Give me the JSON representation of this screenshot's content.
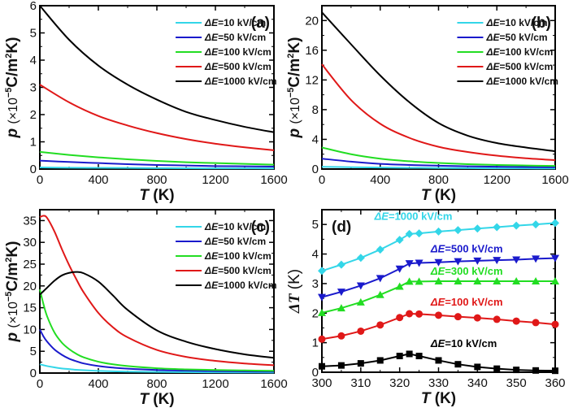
{
  "chart_data": [
    {
      "panel": "(a)",
      "type": "line",
      "xlabel": "T (K)",
      "ylabel": "p (×10⁻⁵C/m²K)",
      "xlim": [
        0,
        1600
      ],
      "ylim": [
        0,
        6
      ],
      "xticks": [
        0,
        400,
        800,
        1200,
        1600
      ],
      "yticks": [
        0,
        1,
        2,
        3,
        4,
        5,
        6
      ],
      "legend_position": "top-right",
      "x": [
        0,
        200,
        400,
        600,
        800,
        1000,
        1200,
        1400,
        1600
      ],
      "series": [
        {
          "name": "ΔE=10 kV/cm",
          "color": "#33d6e8",
          "values": [
            0.06,
            0.05,
            0.045,
            0.04,
            0.035,
            0.03,
            0.027,
            0.025,
            0.023
          ]
        },
        {
          "name": "ΔE=50 kV/cm",
          "color": "#1a1acc",
          "values": [
            0.31,
            0.26,
            0.22,
            0.18,
            0.15,
            0.13,
            0.11,
            0.1,
            0.09
          ]
        },
        {
          "name": "ΔE=100 kV/cm",
          "color": "#22dd22",
          "values": [
            0.63,
            0.52,
            0.43,
            0.36,
            0.3,
            0.25,
            0.22,
            0.19,
            0.16
          ]
        },
        {
          "name": "ΔE=500 kV/cm",
          "color": "#e01818",
          "values": [
            3.1,
            2.45,
            1.95,
            1.6,
            1.32,
            1.1,
            0.93,
            0.8,
            0.69
          ]
        },
        {
          "name": "ΔE=1000 kV/cm",
          "color": "#000000",
          "values": [
            6.0,
            4.75,
            3.8,
            3.1,
            2.55,
            2.1,
            1.8,
            1.55,
            1.35
          ]
        }
      ]
    },
    {
      "panel": "(b)",
      "type": "line",
      "xlabel": "T (K)",
      "ylabel": "p (×10⁻⁵C/m²K)",
      "xlim": [
        0,
        1600
      ],
      "ylim": [
        0,
        22
      ],
      "xticks": [
        0,
        400,
        800,
        1200,
        1600
      ],
      "yticks": [
        0,
        4,
        8,
        12,
        16,
        20
      ],
      "legend_position": "top-right",
      "x": [
        0,
        200,
        400,
        600,
        800,
        1000,
        1200,
        1400,
        1600
      ],
      "series": [
        {
          "name": "ΔE=10 kV/cm",
          "color": "#33d6e8",
          "values": [
            0.3,
            0.25,
            0.2,
            0.17,
            0.14,
            0.12,
            0.1,
            0.09,
            0.08
          ]
        },
        {
          "name": "ΔE=50 kV/cm",
          "color": "#1a1acc",
          "values": [
            1.4,
            1.0,
            0.7,
            0.55,
            0.45,
            0.37,
            0.31,
            0.27,
            0.24
          ]
        },
        {
          "name": "ΔE=100 kV/cm",
          "color": "#22dd22",
          "values": [
            2.9,
            2.0,
            1.4,
            1.05,
            0.82,
            0.65,
            0.55,
            0.48,
            0.42
          ]
        },
        {
          "name": "ΔE=500 kV/cm",
          "color": "#e01818",
          "values": [
            14.1,
            9.3,
            6.1,
            4.2,
            3.0,
            2.3,
            1.8,
            1.45,
            1.2
          ]
        },
        {
          "name": "ΔE=1000 kV/cm",
          "color": "#000000",
          "values": [
            21.1,
            16.8,
            12.6,
            9.0,
            6.2,
            4.5,
            3.5,
            2.9,
            2.4
          ]
        }
      ]
    },
    {
      "panel": "(c)",
      "type": "line",
      "xlabel": "T (K)",
      "ylabel": "p (×10⁻⁵C/m²K)",
      "xlim": [
        0,
        1600
      ],
      "ylim": [
        0,
        37.5
      ],
      "xticks": [
        0,
        400,
        800,
        1200,
        1600
      ],
      "yticks": [
        0,
        5,
        10,
        15,
        20,
        25,
        30,
        35
      ],
      "legend_position": "top-right",
      "x": [
        0,
        25,
        50,
        100,
        150,
        200,
        250,
        300,
        400,
        500,
        600,
        800,
        1000,
        1200,
        1400,
        1600
      ],
      "series": [
        {
          "name": "ΔE=10 kV/cm",
          "color": "#33d6e8",
          "values": [
            2.0,
            1.8,
            1.6,
            1.3,
            1.05,
            0.9,
            0.75,
            0.65,
            0.5,
            0.4,
            0.33,
            0.25,
            0.2,
            0.16,
            0.14,
            0.12
          ]
        },
        {
          "name": "ΔE=50 kV/cm",
          "color": "#1a1acc",
          "values": [
            10.0,
            8.4,
            7.2,
            5.4,
            4.2,
            3.3,
            2.7,
            2.2,
            1.6,
            1.25,
            1.0,
            0.7,
            0.55,
            0.45,
            0.38,
            0.33
          ]
        },
        {
          "name": "ΔE=100 kV/cm",
          "color": "#22dd22",
          "values": [
            19.2,
            15.8,
            13.0,
            9.3,
            7.0,
            5.5,
            4.4,
            3.6,
            2.6,
            2.0,
            1.6,
            1.1,
            0.85,
            0.7,
            0.6,
            0.52
          ]
        },
        {
          "name": "ΔE=500 kV/cm",
          "color": "#e01818",
          "values": [
            35.8,
            36.1,
            35.6,
            32.5,
            28.5,
            24.8,
            21.5,
            18.5,
            13.8,
            10.5,
            8.2,
            5.3,
            3.7,
            2.8,
            2.2,
            1.8
          ]
        },
        {
          "name": "ΔE=1000 kV/cm",
          "color": "#000000",
          "values": [
            18.0,
            18.8,
            19.6,
            21.2,
            22.4,
            23.0,
            23.2,
            22.9,
            21.0,
            17.8,
            14.5,
            9.8,
            7.2,
            5.5,
            4.3,
            3.5
          ]
        }
      ]
    },
    {
      "panel": "(d)",
      "type": "line",
      "xlabel": "T (K)",
      "ylabel": "ΔT (K)",
      "xlim": [
        300,
        360
      ],
      "ylim": [
        0,
        5.5
      ],
      "xticks": [
        300,
        310,
        320,
        330,
        340,
        350,
        360
      ],
      "yticks": [
        0,
        1,
        2,
        3,
        4,
        5
      ],
      "legend_position": "inline",
      "x": [
        300,
        305,
        310,
        315,
        320,
        322.5,
        325,
        330,
        335,
        340,
        345,
        350,
        355,
        360
      ],
      "series": [
        {
          "name": "ΔE=10 kV/cm",
          "color": "#000000",
          "marker": "square",
          "values": [
            0.2,
            0.23,
            0.3,
            0.4,
            0.55,
            0.62,
            0.55,
            0.4,
            0.27,
            0.18,
            0.12,
            0.08,
            0.06,
            0.05
          ]
        },
        {
          "name": "ΔE=100 kV/cm",
          "color": "#e01818",
          "marker": "circle",
          "values": [
            1.12,
            1.23,
            1.39,
            1.6,
            1.85,
            1.98,
            1.97,
            1.93,
            1.88,
            1.84,
            1.79,
            1.73,
            1.68,
            1.62
          ]
        },
        {
          "name": "ΔE=300 kV/cm",
          "color": "#22dd22",
          "marker": "triangle-up",
          "values": [
            2.01,
            2.17,
            2.37,
            2.62,
            2.9,
            3.07,
            3.07,
            3.08,
            3.08,
            3.08,
            3.08,
            3.08,
            3.08,
            3.08
          ]
        },
        {
          "name": "ΔE=500 kV/cm",
          "color": "#1a1acc",
          "marker": "triangle-down",
          "values": [
            2.54,
            2.72,
            2.93,
            3.18,
            3.5,
            3.68,
            3.7,
            3.72,
            3.75,
            3.77,
            3.79,
            3.81,
            3.84,
            3.86
          ]
        },
        {
          "name": "ΔE=1000 kV/cm",
          "color": "#33d6e8",
          "marker": "diamond",
          "values": [
            3.43,
            3.64,
            3.87,
            4.15,
            4.48,
            4.68,
            4.7,
            4.76,
            4.81,
            4.86,
            4.91,
            4.96,
            5.0,
            5.05
          ]
        }
      ]
    }
  ]
}
